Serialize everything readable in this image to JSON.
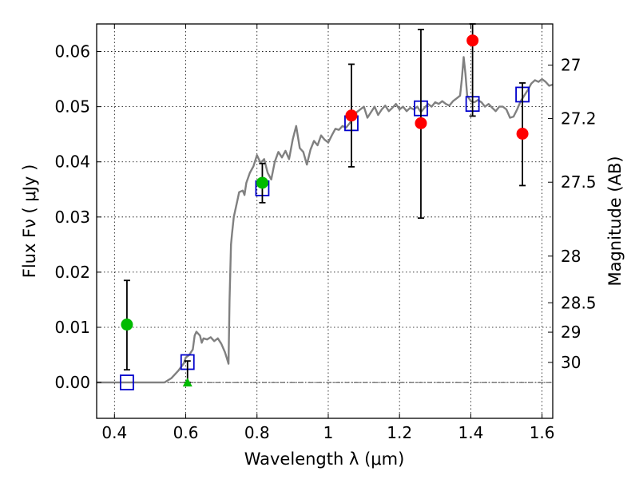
{
  "chart_data": {
    "type": "scatter",
    "xlabel": "Wavelength  λ (μm)",
    "ylabel": "Flux  Fν  ( μJy )",
    "y2label": "Magnitude (AB)",
    "xlim": [
      0.35,
      1.63
    ],
    "ylim": [
      -0.0065,
      0.065
    ],
    "grid": true,
    "x_ticks": [
      0.4,
      0.6,
      0.8,
      1.0,
      1.2,
      1.4,
      1.6
    ],
    "x_tick_labels": [
      "0.4",
      "0.6",
      "0.8",
      "1",
      "1.2",
      "1.4",
      "1.6"
    ],
    "y_ticks": [
      0.0,
      0.01,
      0.02,
      0.03,
      0.04,
      0.05,
      0.06
    ],
    "y_tick_labels": [
      "0.00",
      "0.01",
      "0.02",
      "0.03",
      "0.04",
      "0.05",
      "0.06"
    ],
    "y2_ticks": [
      {
        "label": "27",
        "flux": 0.05754
      },
      {
        "label": "27.2",
        "flux": 0.04786
      },
      {
        "label": "27.5",
        "flux": 0.03631
      },
      {
        "label": "28",
        "flux": 0.02291
      },
      {
        "label": "28.5",
        "flux": 0.01445
      },
      {
        "label": "29",
        "flux": 0.00912
      },
      {
        "label": "30",
        "flux": 0.00363
      }
    ],
    "zero_line": 0.0,
    "colors": {
      "model": "#808080",
      "model_points": "#0000cc",
      "red": "#ff0000",
      "green": "#00bb00",
      "errorbar": "#000000"
    },
    "series": [
      {
        "type": "line",
        "color": "#808080",
        "points": [
          [
            0.35,
            0.0
          ],
          [
            0.5,
            0.0
          ],
          [
            0.54,
            0.0
          ],
          [
            0.56,
            0.0008
          ],
          [
            0.58,
            0.0022
          ],
          [
            0.595,
            0.0035
          ],
          [
            0.6,
            0.0045
          ],
          [
            0.61,
            0.005
          ],
          [
            0.62,
            0.006
          ],
          [
            0.625,
            0.0085
          ],
          [
            0.63,
            0.0092
          ],
          [
            0.64,
            0.0085
          ],
          [
            0.645,
            0.0072
          ],
          [
            0.65,
            0.008
          ],
          [
            0.66,
            0.0078
          ],
          [
            0.67,
            0.0082
          ],
          [
            0.68,
            0.0075
          ],
          [
            0.69,
            0.008
          ],
          [
            0.7,
            0.007
          ],
          [
            0.71,
            0.0055
          ],
          [
            0.715,
            0.0045
          ],
          [
            0.72,
            0.0034
          ],
          [
            0.723,
            0.015
          ],
          [
            0.727,
            0.025
          ],
          [
            0.73,
            0.027
          ],
          [
            0.735,
            0.03
          ],
          [
            0.745,
            0.033
          ],
          [
            0.75,
            0.0345
          ],
          [
            0.76,
            0.0348
          ],
          [
            0.765,
            0.034
          ],
          [
            0.77,
            0.0362
          ],
          [
            0.78,
            0.038
          ],
          [
            0.79,
            0.0392
          ],
          [
            0.8,
            0.0412
          ],
          [
            0.81,
            0.0398
          ],
          [
            0.82,
            0.0405
          ],
          [
            0.83,
            0.038
          ],
          [
            0.84,
            0.0368
          ],
          [
            0.85,
            0.04
          ],
          [
            0.86,
            0.0418
          ],
          [
            0.87,
            0.0408
          ],
          [
            0.88,
            0.042
          ],
          [
            0.89,
            0.0405
          ],
          [
            0.9,
            0.044
          ],
          [
            0.91,
            0.0465
          ],
          [
            0.92,
            0.0425
          ],
          [
            0.93,
            0.0418
          ],
          [
            0.94,
            0.0395
          ],
          [
            0.95,
            0.0422
          ],
          [
            0.96,
            0.0438
          ],
          [
            0.97,
            0.043
          ],
          [
            0.98,
            0.0448
          ],
          [
            0.99,
            0.044
          ],
          [
            1.0,
            0.0435
          ],
          [
            1.01,
            0.0448
          ],
          [
            1.02,
            0.046
          ],
          [
            1.03,
            0.0458
          ],
          [
            1.04,
            0.0465
          ],
          [
            1.05,
            0.0462
          ],
          [
            1.06,
            0.047
          ],
          [
            1.07,
            0.0478
          ],
          [
            1.08,
            0.049
          ],
          [
            1.09,
            0.0495
          ],
          [
            1.1,
            0.05
          ],
          [
            1.11,
            0.048
          ],
          [
            1.12,
            0.049
          ],
          [
            1.13,
            0.05
          ],
          [
            1.14,
            0.0485
          ],
          [
            1.15,
            0.0495
          ],
          [
            1.16,
            0.0502
          ],
          [
            1.17,
            0.0492
          ],
          [
            1.18,
            0.0498
          ],
          [
            1.19,
            0.0505
          ],
          [
            1.2,
            0.0495
          ],
          [
            1.21,
            0.05
          ],
          [
            1.22,
            0.0492
          ],
          [
            1.23,
            0.0498
          ],
          [
            1.24,
            0.0495
          ],
          [
            1.25,
            0.05
          ],
          [
            1.26,
            0.049
          ],
          [
            1.27,
            0.0498
          ],
          [
            1.28,
            0.0505
          ],
          [
            1.29,
            0.05
          ],
          [
            1.3,
            0.0508
          ],
          [
            1.31,
            0.0505
          ],
          [
            1.32,
            0.051
          ],
          [
            1.33,
            0.0505
          ],
          [
            1.34,
            0.0502
          ],
          [
            1.35,
            0.051
          ],
          [
            1.36,
            0.0515
          ],
          [
            1.37,
            0.052
          ],
          [
            1.375,
            0.055
          ],
          [
            1.38,
            0.059
          ],
          [
            1.385,
            0.056
          ],
          [
            1.39,
            0.052
          ],
          [
            1.4,
            0.051
          ],
          [
            1.41,
            0.0508
          ],
          [
            1.42,
            0.0512
          ],
          [
            1.43,
            0.0508
          ],
          [
            1.44,
            0.05
          ],
          [
            1.45,
            0.0505
          ],
          [
            1.46,
            0.0498
          ],
          [
            1.47,
            0.0492
          ],
          [
            1.48,
            0.05
          ],
          [
            1.49,
            0.05
          ],
          [
            1.5,
            0.0495
          ],
          [
            1.51,
            0.048
          ],
          [
            1.52,
            0.0482
          ],
          [
            1.53,
            0.0495
          ],
          [
            1.54,
            0.051
          ],
          [
            1.55,
            0.052
          ],
          [
            1.56,
            0.053
          ],
          [
            1.57,
            0.0542
          ],
          [
            1.58,
            0.0548
          ],
          [
            1.59,
            0.0545
          ],
          [
            1.6,
            0.055
          ],
          [
            1.61,
            0.0545
          ],
          [
            1.62,
            0.0538
          ],
          [
            1.63,
            0.054
          ]
        ]
      },
      {
        "type": "square",
        "color": "#0000cc",
        "points": [
          [
            0.435,
            0.0
          ],
          [
            0.605,
            0.0037
          ],
          [
            0.815,
            0.0352
          ],
          [
            1.065,
            0.047
          ],
          [
            1.26,
            0.0497
          ],
          [
            1.405,
            0.0505
          ],
          [
            1.545,
            0.0522
          ]
        ]
      },
      {
        "type": "errorbar",
        "color": "#000000",
        "points": [
          {
            "x": 0.435,
            "y": 0.0105,
            "ylo": 0.0023,
            "yhi": 0.0185
          },
          {
            "x": 0.605,
            "y": 0.0,
            "ylo": 0.0,
            "yhi": 0.0039
          },
          {
            "x": 0.815,
            "y": 0.0362,
            "ylo": 0.0326,
            "yhi": 0.0397
          },
          {
            "x": 1.065,
            "y": 0.0484,
            "ylo": 0.0391,
            "yhi": 0.0577
          },
          {
            "x": 1.26,
            "y": 0.047,
            "ylo": 0.0298,
            "yhi": 0.064
          },
          {
            "x": 1.405,
            "y": 0.062,
            "ylo": 0.0483,
            "yhi": 0.065
          },
          {
            "x": 1.545,
            "y": 0.0451,
            "ylo": 0.0357,
            "yhi": 0.0543
          }
        ]
      },
      {
        "type": "circle",
        "color": "#ff0000",
        "points": [
          [
            1.065,
            0.0484
          ],
          [
            1.26,
            0.047
          ],
          [
            1.405,
            0.062
          ],
          [
            1.545,
            0.0451
          ]
        ]
      },
      {
        "type": "circle",
        "color": "#00bb00",
        "points": [
          [
            0.435,
            0.0105
          ],
          [
            0.815,
            0.0362
          ]
        ]
      },
      {
        "type": "triangle",
        "color": "#00bb00",
        "points": [
          [
            0.605,
            0.0
          ]
        ]
      }
    ]
  }
}
